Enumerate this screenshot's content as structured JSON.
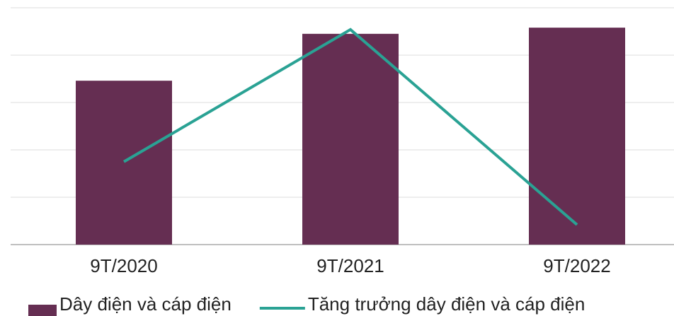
{
  "chart_data": {
    "type": "bar_line",
    "categories": [
      "9T/2020",
      "9T/2021",
      "9T/2022"
    ],
    "series": [
      {
        "name": "Dây điện và cáp điện",
        "type": "bar",
        "color": "#652e52",
        "values": [
          3.46,
          4.45,
          4.58
        ]
      },
      {
        "name": "Tăng trưởng dây điện và cáp điện",
        "type": "line",
        "color": "#2aa294",
        "values": [
          1.75,
          4.54,
          0.42
        ]
      }
    ],
    "ylim": [
      0,
      5
    ],
    "yticks": [
      0,
      1,
      2,
      3,
      4,
      5
    ],
    "grid": true,
    "legend": "bottom"
  }
}
